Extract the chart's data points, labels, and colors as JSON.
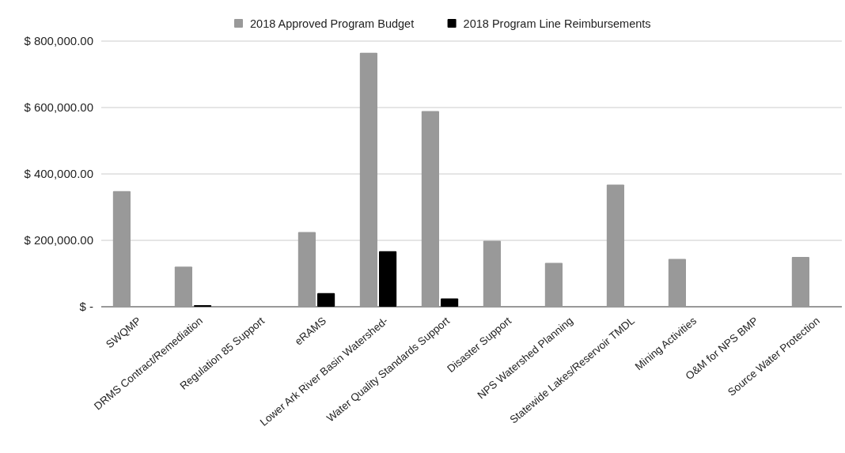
{
  "chart_data": {
    "type": "bar",
    "categories": [
      "SWQMP",
      "DRMS Contract/Remediation",
      "Regulation 85 Support",
      "eRAMS",
      "Lower Ark River Basin Watershed-",
      "Water Quality Standards Support",
      "Disaster Support",
      "NPS Watershed Planning",
      "Statewide Lakes/Reservoir TMDL",
      "Mining Activities",
      "O&M for NPS BMP",
      "Source Water Protection"
    ],
    "series": [
      {
        "name": "2018 Approved Program Budget",
        "color": "#999999",
        "values": [
          348000,
          121000,
          null,
          225000,
          765000,
          589000,
          199000,
          132000,
          368000,
          144000,
          null,
          150000
        ]
      },
      {
        "name": "2018 Program Line Reimbursements",
        "color": "#000000",
        "values": [
          null,
          5000,
          null,
          41000,
          167000,
          25000,
          null,
          null,
          null,
          null,
          null,
          null
        ]
      }
    ],
    "ylim": [
      0,
      800000
    ],
    "yticks": [
      {
        "value": 0,
        "label": "$ -"
      },
      {
        "value": 200000,
        "label": "$ 200,000.00"
      },
      {
        "value": 400000,
        "label": "$ 400,000.00"
      },
      {
        "value": 600000,
        "label": "$ 600,000.00"
      },
      {
        "value": 800000,
        "label": "$ 800,000.00"
      }
    ],
    "grid": "y",
    "legend": "top"
  }
}
